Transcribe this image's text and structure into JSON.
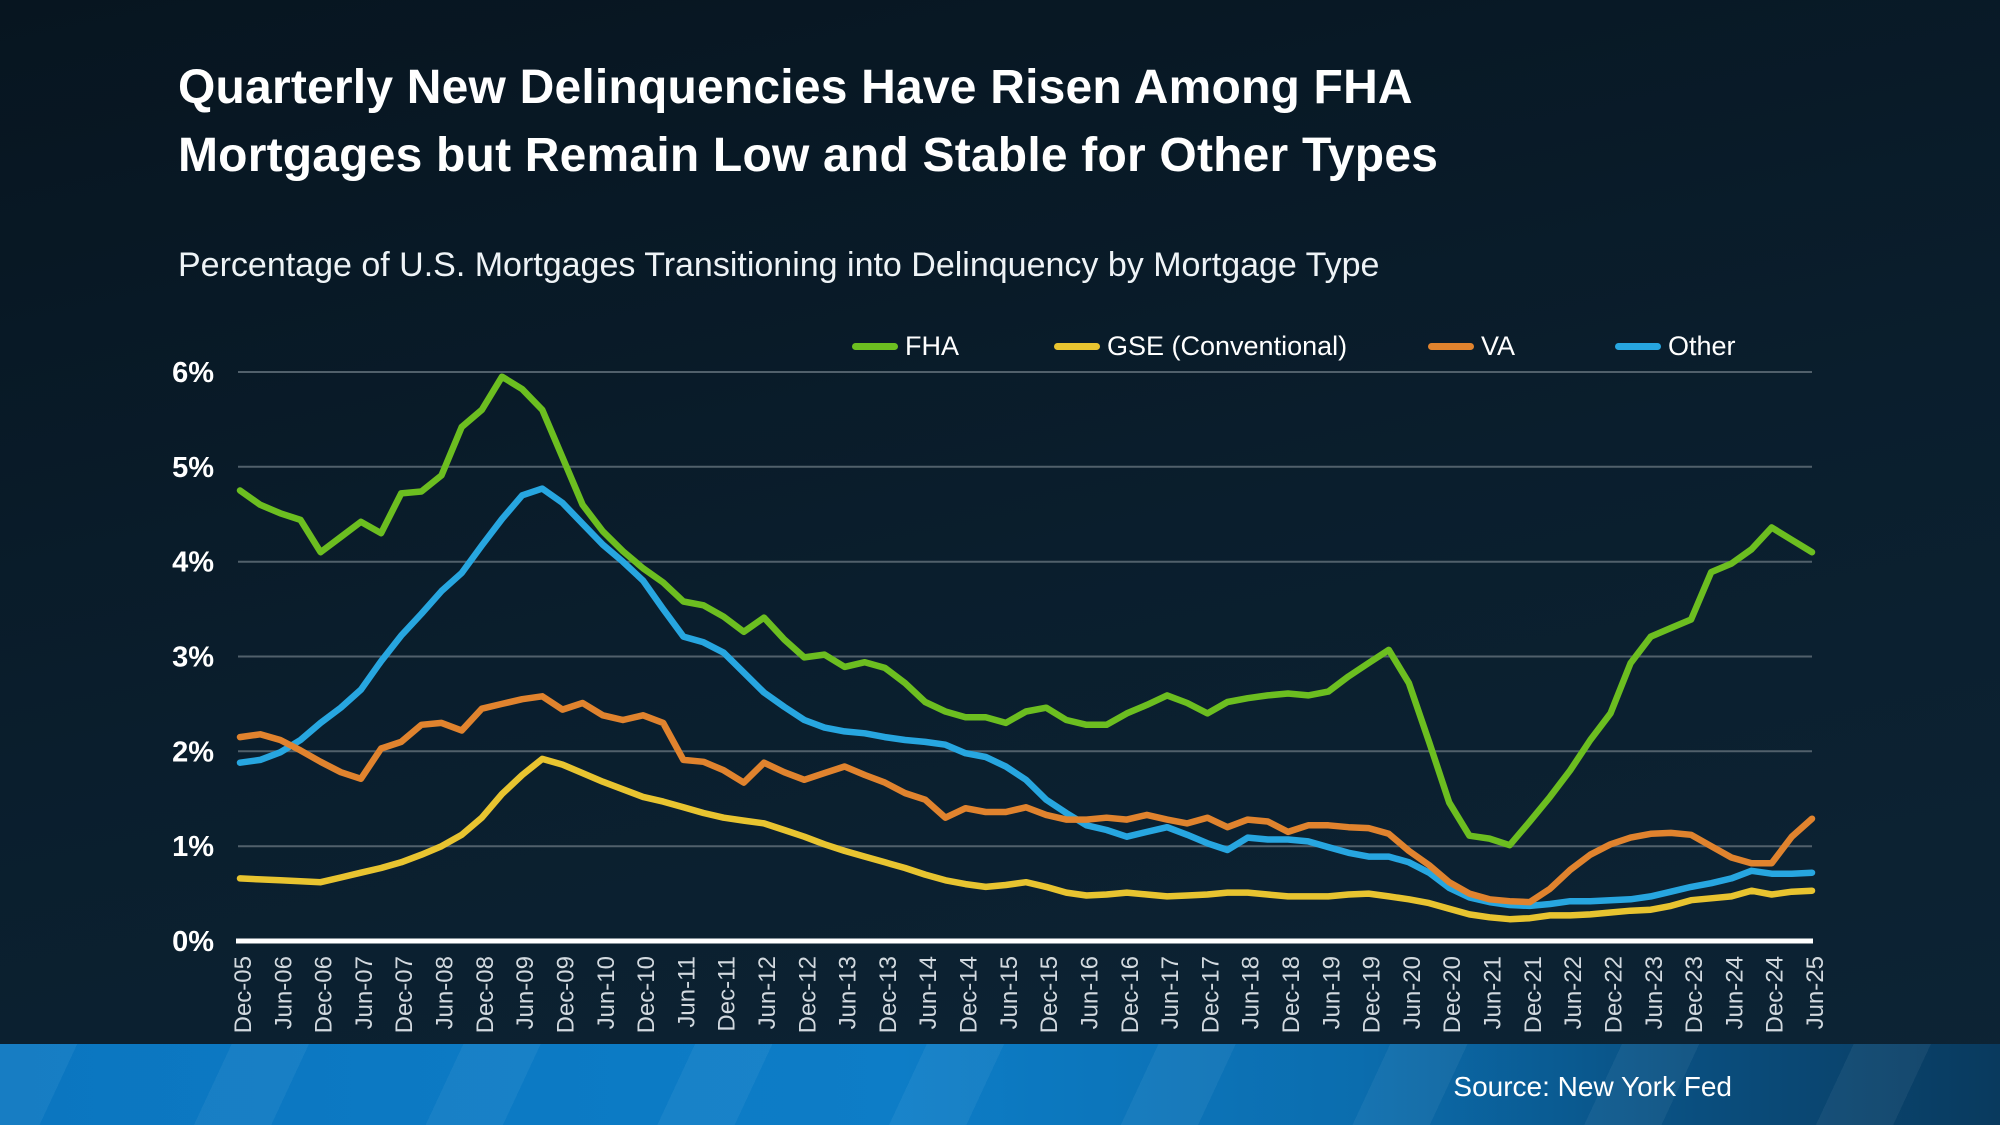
{
  "page": {
    "colors": {
      "background_top": "#071520",
      "background_bottom": "#0d2435",
      "gridline": "#51606b",
      "zero_axis": "#ffffff",
      "x_tick_text": "#d2d9df",
      "y_tick_text": "#ffffff",
      "footer_bar_left": "#0d7dc7",
      "footer_bar_right": "#093a5e"
    }
  },
  "header": {
    "title": "Quarterly New Delinquencies Have Risen Among FHA Mortgages but Remain Low and Stable for Other Types",
    "subtitle": "Percentage of U.S. Mortgages Transitioning into Delinquency by Mortgage Type"
  },
  "source": {
    "label": "Source: New York Fed"
  },
  "chart_data": {
    "type": "line",
    "title": "Quarterly New Delinquencies Have Risen Among FHA Mortgages but Remain Low and Stable for Other Types",
    "subtitle": "Percentage of U.S. Mortgages Transitioning into Delinquency by Mortgage Type",
    "xlabel": "",
    "ylabel": "",
    "ylim": [
      0,
      6
    ],
    "yticks": [
      "0%",
      "1%",
      "2%",
      "3%",
      "4%",
      "5%",
      "6%"
    ],
    "grid": true,
    "legend_position": "top",
    "x_tick_every": 2,
    "x_categories": [
      "Dec-05",
      "Mar-06",
      "Jun-06",
      "Sep-06",
      "Dec-06",
      "Mar-07",
      "Jun-07",
      "Sep-07",
      "Dec-07",
      "Mar-08",
      "Jun-08",
      "Sep-08",
      "Dec-08",
      "Mar-09",
      "Jun-09",
      "Sep-09",
      "Dec-09",
      "Mar-10",
      "Jun-10",
      "Sep-10",
      "Dec-10",
      "Mar-11",
      "Jun-11",
      "Sep-11",
      "Dec-11",
      "Mar-12",
      "Jun-12",
      "Sep-12",
      "Dec-12",
      "Mar-13",
      "Jun-13",
      "Sep-13",
      "Dec-13",
      "Mar-14",
      "Jun-14",
      "Sep-14",
      "Dec-14",
      "Mar-15",
      "Jun-15",
      "Sep-15",
      "Dec-15",
      "Mar-16",
      "Jun-16",
      "Sep-16",
      "Dec-16",
      "Mar-17",
      "Jun-17",
      "Sep-17",
      "Dec-17",
      "Mar-18",
      "Jun-18",
      "Sep-18",
      "Dec-18",
      "Mar-19",
      "Jun-19",
      "Sep-19",
      "Dec-19",
      "Mar-20",
      "Jun-20",
      "Sep-20",
      "Dec-20",
      "Mar-21",
      "Jun-21",
      "Sep-21",
      "Dec-21",
      "Mar-22",
      "Jun-22",
      "Sep-22",
      "Dec-22",
      "Mar-23",
      "Jun-23",
      "Sep-23",
      "Dec-23",
      "Mar-24",
      "Jun-24",
      "Sep-24",
      "Dec-24",
      "Mar-25",
      "Jun-25"
    ],
    "x_tick_labels": [
      "Dec-05",
      "Jun-06",
      "Dec-06",
      "Jun-07",
      "Dec-07",
      "Jun-08",
      "Dec-08",
      "Jun-09",
      "Dec-09",
      "Jun-10",
      "Dec-10",
      "Jun-11",
      "Dec-11",
      "Jun-12",
      "Dec-12",
      "Jun-13",
      "Dec-13",
      "Jun-14",
      "Dec-14",
      "Jun-15",
      "Dec-15",
      "Jun-16",
      "Dec-16",
      "Jun-17",
      "Dec-17",
      "Jun-18",
      "Dec-18",
      "Jun-19",
      "Dec-19",
      "Jun-20",
      "Dec-20",
      "Jun-21",
      "Dec-21",
      "Jun-22",
      "Dec-22",
      "Jun-23",
      "Dec-23",
      "Jun-24",
      "Dec-24",
      "Jun-25"
    ],
    "series": [
      {
        "name": "FHA",
        "color": "#6cbe20",
        "values": [
          4.75,
          4.6,
          4.51,
          4.44,
          4.1,
          4.26,
          4.42,
          4.3,
          4.72,
          4.74,
          4.91,
          5.42,
          5.6,
          5.95,
          5.82,
          5.6,
          5.1,
          4.6,
          4.32,
          4.11,
          3.93,
          3.78,
          3.58,
          3.54,
          3.42,
          3.26,
          3.41,
          3.18,
          2.99,
          3.02,
          2.89,
          2.94,
          2.88,
          2.72,
          2.52,
          2.42,
          2.36,
          2.36,
          2.3,
          2.42,
          2.46,
          2.33,
          2.28,
          2.28,
          2.4,
          2.49,
          2.59,
          2.51,
          2.4,
          2.52,
          2.56,
          2.59,
          2.61,
          2.59,
          2.63,
          2.79,
          2.93,
          3.07,
          2.72,
          2.1,
          1.46,
          1.11,
          1.08,
          1.01,
          1.26,
          1.52,
          1.8,
          2.12,
          2.4,
          2.93,
          3.21,
          3.3,
          3.39,
          3.89,
          3.98,
          4.13,
          4.36,
          4.23,
          4.1
        ]
      },
      {
        "name": "GSE (Conventional)",
        "color": "#e8c430",
        "values": [
          0.66,
          0.65,
          0.64,
          0.63,
          0.62,
          0.67,
          0.72,
          0.77,
          0.83,
          0.91,
          1.0,
          1.12,
          1.3,
          1.55,
          1.75,
          1.92,
          1.86,
          1.77,
          1.68,
          1.6,
          1.52,
          1.47,
          1.41,
          1.35,
          1.3,
          1.27,
          1.24,
          1.17,
          1.1,
          1.02,
          0.95,
          0.89,
          0.83,
          0.77,
          0.7,
          0.64,
          0.6,
          0.57,
          0.59,
          0.62,
          0.57,
          0.51,
          0.48,
          0.49,
          0.51,
          0.49,
          0.47,
          0.48,
          0.49,
          0.51,
          0.51,
          0.49,
          0.47,
          0.47,
          0.47,
          0.49,
          0.5,
          0.47,
          0.44,
          0.4,
          0.34,
          0.28,
          0.25,
          0.23,
          0.24,
          0.27,
          0.27,
          0.28,
          0.3,
          0.32,
          0.33,
          0.37,
          0.43,
          0.45,
          0.47,
          0.53,
          0.49,
          0.52,
          0.53
        ]
      },
      {
        "name": "VA",
        "color": "#e0832e",
        "values": [
          2.15,
          2.18,
          2.12,
          2.01,
          1.89,
          1.78,
          1.71,
          2.03,
          2.1,
          2.28,
          2.3,
          2.22,
          2.45,
          2.5,
          2.55,
          2.58,
          2.44,
          2.51,
          2.38,
          2.33,
          2.38,
          2.3,
          1.91,
          1.89,
          1.8,
          1.67,
          1.88,
          1.78,
          1.7,
          1.77,
          1.84,
          1.75,
          1.67,
          1.56,
          1.49,
          1.3,
          1.4,
          1.36,
          1.36,
          1.41,
          1.33,
          1.28,
          1.28,
          1.3,
          1.28,
          1.33,
          1.28,
          1.24,
          1.3,
          1.2,
          1.28,
          1.26,
          1.15,
          1.22,
          1.22,
          1.2,
          1.19,
          1.13,
          0.95,
          0.8,
          0.62,
          0.5,
          0.44,
          0.42,
          0.41,
          0.55,
          0.75,
          0.91,
          1.02,
          1.09,
          1.13,
          1.14,
          1.12,
          1.0,
          0.88,
          0.82,
          0.82,
          1.1,
          1.29
        ]
      },
      {
        "name": "Other",
        "color": "#27a6e0",
        "values": [
          1.88,
          1.91,
          1.99,
          2.12,
          2.3,
          2.46,
          2.65,
          2.95,
          3.22,
          3.45,
          3.69,
          3.88,
          4.17,
          4.45,
          4.7,
          4.77,
          4.62,
          4.4,
          4.18,
          4.0,
          3.8,
          3.5,
          3.21,
          3.15,
          3.04,
          2.83,
          2.62,
          2.47,
          2.33,
          2.25,
          2.21,
          2.19,
          2.15,
          2.12,
          2.1,
          2.07,
          1.98,
          1.94,
          1.84,
          1.7,
          1.49,
          1.35,
          1.22,
          1.17,
          1.1,
          1.15,
          1.2,
          1.12,
          1.03,
          0.96,
          1.09,
          1.07,
          1.07,
          1.05,
          0.99,
          0.93,
          0.89,
          0.89,
          0.83,
          0.72,
          0.56,
          0.46,
          0.41,
          0.38,
          0.37,
          0.39,
          0.42,
          0.42,
          0.43,
          0.44,
          0.47,
          0.52,
          0.57,
          0.61,
          0.66,
          0.74,
          0.71,
          0.71,
          0.72
        ]
      }
    ]
  }
}
